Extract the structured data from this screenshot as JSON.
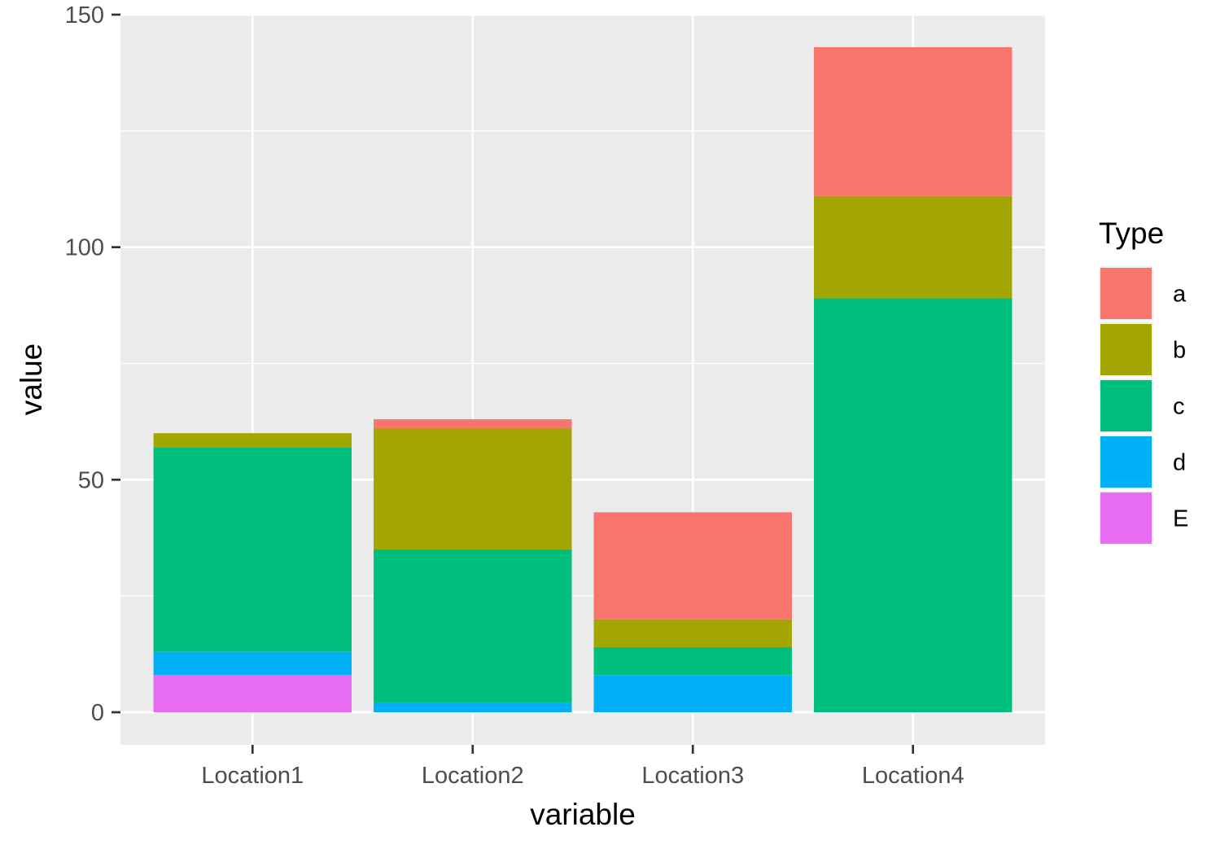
{
  "chart_data": {
    "type": "bar",
    "stacked": true,
    "xlabel": "variable",
    "ylabel": "value",
    "ylim": [
      -7,
      150
    ],
    "yticks": [
      0,
      50,
      100,
      150
    ],
    "categories": [
      "Location1",
      "Location2",
      "Location3",
      "Location4"
    ],
    "stack_order_bottom_to_top": [
      "E",
      "d",
      "c",
      "b",
      "a"
    ],
    "series": [
      {
        "name": "a",
        "color": "#F8766D",
        "values": [
          0,
          2,
          23,
          32
        ]
      },
      {
        "name": "b",
        "color": "#A3A500",
        "values": [
          3,
          26,
          6,
          22
        ]
      },
      {
        "name": "c",
        "color": "#00BF7D",
        "values": [
          44,
          33,
          6,
          89
        ]
      },
      {
        "name": "d",
        "color": "#00B0F6",
        "values": [
          5,
          2,
          8,
          0
        ]
      },
      {
        "name": "E",
        "color": "#E76BF3",
        "values": [
          8,
          0,
          0,
          0
        ]
      }
    ],
    "legend": {
      "title": "Type",
      "placement": "right"
    },
    "grid": true,
    "panel_background": "#EBEBEB"
  }
}
